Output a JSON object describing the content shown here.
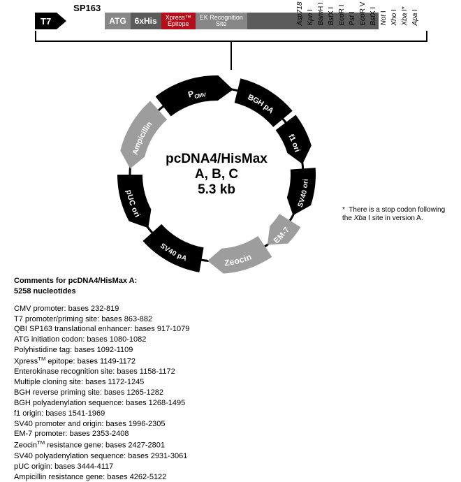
{
  "linear_map": {
    "t7": "T7",
    "sp163": "SP163",
    "atg": "ATG",
    "his": "6xHis",
    "xpress_top": "Xpress™",
    "xpress_bottom": "Epitope",
    "ek_top": "EK Recognition",
    "ek_bottom": "Site",
    "sites": [
      {
        "name": "Asp718",
        "suffix": " I"
      },
      {
        "name": "Kpn",
        "suffix": " I"
      },
      {
        "name": "Bam",
        "suffix": "H I"
      },
      {
        "name": "Bst",
        "suffix": "X I"
      },
      {
        "name": "Eco",
        "suffix": "R I"
      },
      {
        "name": "Pst",
        "suffix": " I"
      },
      {
        "name": "Eco",
        "suffix": "R V"
      },
      {
        "name": "Bst",
        "suffix": "X I"
      },
      {
        "name": "Not",
        "suffix": " I"
      },
      {
        "name": "Xho",
        "suffix": " I"
      },
      {
        "name": "Xba",
        "suffix": " I*"
      },
      {
        "name": "Apa",
        "suffix": " I"
      }
    ]
  },
  "plasmid": {
    "name": "pcDNA4/HisMax",
    "variants": "A, B, C",
    "size": "5.3 kb",
    "ring": {
      "stroke": "#000000",
      "stroke_width": 30,
      "radius_outer": 140,
      "radius_inner": 108
    },
    "segments": [
      {
        "label": "PCMV",
        "type": "arrow",
        "color": "#000000",
        "text": "#ffffff",
        "start_deg": 232,
        "end_deg": 281,
        "dir": "cw",
        "fs": 12,
        "sub": "CMV"
      },
      {
        "label": "BGH pA",
        "type": "block",
        "color": "#000000",
        "text": "#ffffff",
        "start_deg": 284,
        "end_deg": 320,
        "fs": 11
      },
      {
        "label": "f1 ori",
        "type": "arrow",
        "color": "#000000",
        "text": "#ffffff",
        "start_deg": 323,
        "end_deg": 353,
        "dir": "cw",
        "fs": 11
      },
      {
        "label": "SV40 ori",
        "type": "arrow",
        "color": "#000000",
        "text": "#ffffff",
        "start_deg": 356,
        "end_deg": 28,
        "dir": "cw",
        "fs": 10
      },
      {
        "label": "EM-7",
        "type": "arrow",
        "color": "#9d9d9d",
        "text": "#ffffff",
        "start_deg": 32,
        "end_deg": 54,
        "dir": "cw",
        "fs": 11
      },
      {
        "label": "Zeocin",
        "type": "arrow",
        "color": "#9d9d9d",
        "text": "#ffffff",
        "start_deg": 56,
        "end_deg": 96,
        "dir": "cw",
        "fs": 12
      },
      {
        "label": "SV40 pA",
        "type": "block",
        "color": "#000000",
        "text": "#ffffff",
        "start_deg": 100,
        "end_deg": 138,
        "fs": 10
      },
      {
        "label": "pUC ori",
        "type": "arrow",
        "color": "#000000",
        "text": "#ffffff",
        "start_deg": 142,
        "end_deg": 180,
        "dir": "ccw",
        "fs": 11
      },
      {
        "label": "Ampicillin",
        "type": "arrow",
        "color": "#9d9d9d",
        "text": "#ffffff",
        "start_deg": 184,
        "end_deg": 228,
        "dir": "ccw",
        "fs": 11
      }
    ]
  },
  "footnote": {
    "marker": "*",
    "text": "There is a stop codon following the Xba I site in version A."
  },
  "comments": {
    "title_line1": "Comments for pcDNA4/HisMax A:",
    "title_line2": "5258 nucleotides",
    "items": [
      "CMV promoter: bases 232-819",
      "T7 promoter/priming site: bases 863-882",
      "QBI SP163 translational enhancer:  bases 917-1079",
      "ATG initiation codon: bases 1080-1082",
      "Polyhistidine tag:  bases 1092-1109",
      "Xpress™ epitope: bases 1149-1172",
      "Enterokinase recognition site: bases 1158-1172",
      "Multiple cloning site: bases 1172-1245",
      "BGH reverse priming site:  bases 1265-1282",
      "BGH polyadenylation sequence: bases 1268-1495",
      "f1 origin: bases 1541-1969",
      "SV40 promoter and origin: bases 1996-2305",
      "EM-7 promoter: bases 2353-2408",
      "Zeocin™ resistance gene: bases 2427-2801",
      "SV40 polyadenylation sequence: bases 2931-3061",
      "pUC origin: bases 3444-4117",
      "Ampicillin resistance gene: bases 4262-5122"
    ]
  }
}
